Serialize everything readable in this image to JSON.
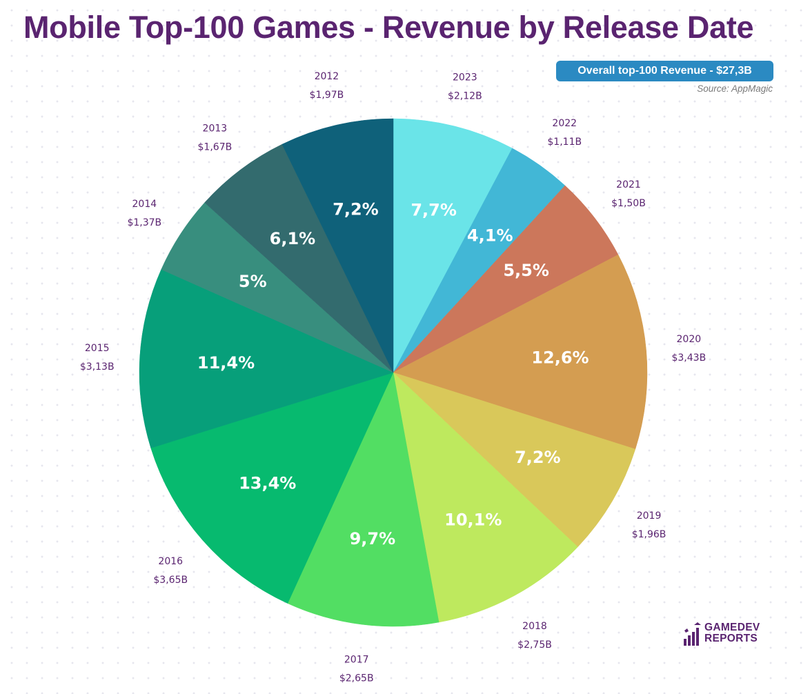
{
  "title": "Mobile Top-100 Games - Revenue by Release Date",
  "total_badge": "Overall top-100 Revenue - $27,3B",
  "source": "Source: AppMagic",
  "logo": {
    "line1": "GAMEDEV",
    "line2": "REPORTS"
  },
  "chart_data": {
    "type": "pie",
    "title": "Mobile Top-100 Games - Revenue by Release Date",
    "total": "$27,3B",
    "start_angle": "12 o'clock, clockwise",
    "slices": [
      {
        "year": "2023",
        "revenue": "$2,12B",
        "value": 2.12,
        "percent_label": "7,7%",
        "percent": 7.7,
        "color": "#6ae4e8"
      },
      {
        "year": "2022",
        "revenue": "$1,11B",
        "value": 1.11,
        "percent_label": "4,1%",
        "percent": 4.1,
        "color": "#42b7d6"
      },
      {
        "year": "2021",
        "revenue": "$1,50B",
        "value": 1.5,
        "percent_label": "5,5%",
        "percent": 5.5,
        "color": "#cc775b"
      },
      {
        "year": "2020",
        "revenue": "$3,43B",
        "value": 3.43,
        "percent_label": "12,6%",
        "percent": 12.6,
        "color": "#d49d51"
      },
      {
        "year": "2019",
        "revenue": "$1,96B",
        "value": 1.96,
        "percent_label": "7,2%",
        "percent": 7.2,
        "color": "#d9c85a"
      },
      {
        "year": "2018",
        "revenue": "$2,75B",
        "value": 2.75,
        "percent_label": "10,1%",
        "percent": 10.1,
        "color": "#bee95e"
      },
      {
        "year": "2017",
        "revenue": "$2,65B",
        "value": 2.65,
        "percent_label": "9,7%",
        "percent": 9.7,
        "color": "#52de63"
      },
      {
        "year": "2016",
        "revenue": "$3,65B",
        "value": 3.65,
        "percent_label": "13,4%",
        "percent": 13.4,
        "color": "#07ba6f"
      },
      {
        "year": "2015",
        "revenue": "$3,13B",
        "value": 3.13,
        "percent_label": "11,4%",
        "percent": 11.4,
        "color": "#079f7a"
      },
      {
        "year": "2014",
        "revenue": "$1,37B",
        "value": 1.37,
        "percent_label": "5%",
        "percent": 5.0,
        "color": "#388e7e"
      },
      {
        "year": "2013",
        "revenue": "$1,67B",
        "value": 1.67,
        "percent_label": "6,1%",
        "percent": 6.1,
        "color": "#336b6e"
      },
      {
        "year": "2012",
        "revenue": "$1,97B",
        "value": 1.97,
        "percent_label": "7,2%",
        "percent": 7.2,
        "color": "#0f617a"
      }
    ]
  }
}
